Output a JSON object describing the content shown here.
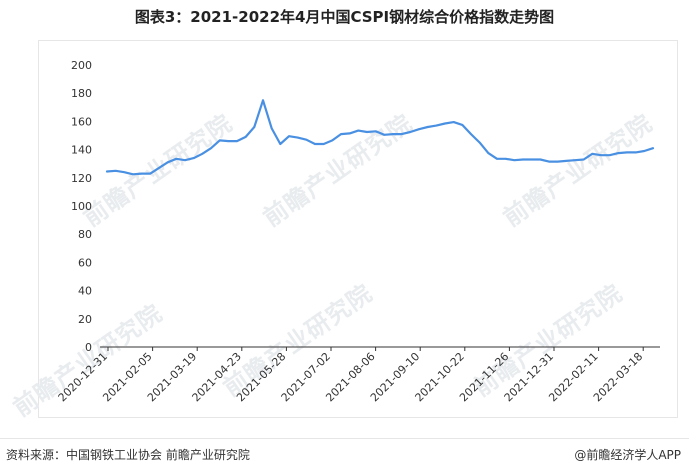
{
  "title": "图表3：2021-2022年4月中国CSPI钢材综合价格指数走势图",
  "watermark": "前瞻产业研究院",
  "source": "资料来源：中国钢铁工业协会 前瞻产业研究院",
  "credit": "@前瞻经济学人APP",
  "colors": {
    "line": "#4a90e2",
    "axis": "#333333",
    "text": "#333333"
  },
  "chart_data": {
    "type": "line",
    "title": "图表3：2021-2022年4月中国CSPI钢材综合价格指数走势图",
    "xlabel": "",
    "ylabel": "",
    "ylim": [
      0,
      200
    ],
    "yticks": [
      0,
      20,
      40,
      60,
      80,
      100,
      120,
      140,
      160,
      180,
      200
    ],
    "xtick_labels": [
      "2020-12-31",
      "2021-02-05",
      "2021-03-19",
      "2021-04-23",
      "2021-05-28",
      "2021-07-02",
      "2021-08-06",
      "2021-09-10",
      "2021-10-22",
      "2021-11-26",
      "2021-12-31",
      "2022-02-11",
      "2022-03-18"
    ],
    "grid": false,
    "legend": false,
    "series": [
      {
        "values": [
          124.5,
          125.0,
          124.0,
          122.5,
          123.0,
          123.0,
          127.0,
          131.0,
          133.5,
          132.5,
          134.0,
          137.0,
          141.0,
          146.5,
          146.0,
          146.0,
          149.0,
          156.0,
          175.0,
          155.0,
          144.0,
          149.5,
          148.5,
          147.0,
          144.0,
          144.0,
          146.5,
          151.0,
          151.5,
          153.5,
          152.5,
          153.0,
          150.5,
          151.0,
          151.0,
          152.5,
          154.5,
          156.0,
          157.0,
          158.5,
          159.5,
          157.5,
          151.0,
          145.0,
          137.5,
          133.5,
          133.5,
          132.5,
          133.0,
          133.0,
          133.0,
          131.5,
          131.5,
          132.0,
          132.5,
          133.0,
          137.0,
          136.0,
          136.0,
          137.5,
          138.0,
          138.0,
          139.0,
          141.0
        ]
      }
    ]
  }
}
